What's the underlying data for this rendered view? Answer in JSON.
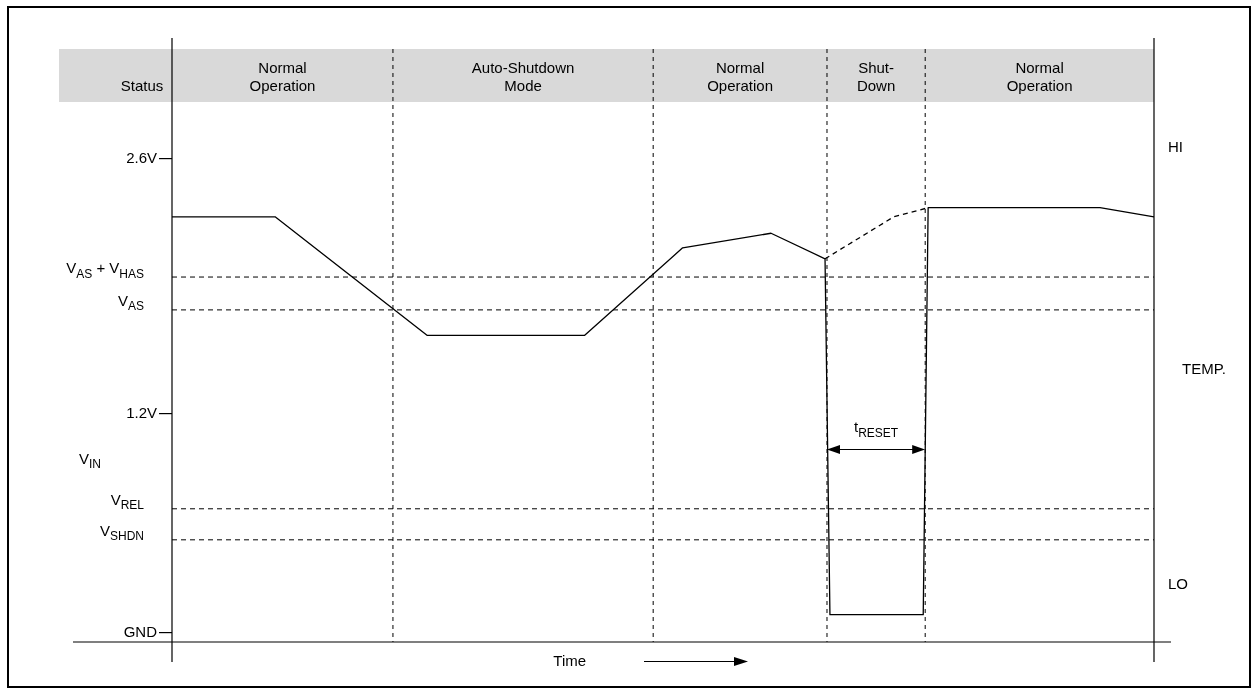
{
  "chart_data": {
    "type": "line",
    "xlabel": "Time",
    "ylabel": "V$_{IN}$",
    "y2label": "TEMP.",
    "categories": [
      null,
      null,
      null,
      null,
      null,
      null,
      null,
      null,
      null,
      null,
      null,
      null,
      null,
      null,
      null,
      null,
      null,
      null,
      null,
      null,
      null,
      null,
      null,
      null,
      null,
      null,
      null,
      null,
      null,
      null,
      null,
      null,
      null,
      null,
      null,
      null,
      null,
      null,
      null,
      null,
      null,
      null,
      null,
      null,
      null,
      null,
      null,
      null,
      null,
      null,
      null,
      null,
      null,
      null,
      null,
      null,
      null,
      null,
      null,
      null,
      null,
      null,
      null,
      null,
      null,
      null,
      null,
      null,
      null,
      null,
      null,
      null,
      null,
      null,
      null,
      null,
      null,
      null,
      null,
      null,
      null,
      null,
      null,
      null,
      null,
      null,
      null,
      null,
      null,
      null,
      null,
      null,
      null,
      null,
      null,
      null,
      null,
      null,
      null,
      null,
      null,
      null,
      null,
      null,
      null,
      null,
      null,
      null,
      null,
      null,
      null,
      null,
      null,
      null,
      null,
      null,
      null,
      null,
      null,
      null,
      null,
      null,
      null,
      null,
      null,
      null,
      null,
      null,
      null,
      null,
      null,
      null,
      null,
      null,
      null,
      null,
      null,
      null,
      null,
      null,
      null,
      null,
      null,
      null,
      null,
      null,
      null,
      null,
      null,
      null,
      null,
      null,
      null,
      null,
      null,
      null,
      null,
      null,
      null,
      null,
      null,
      null,
      null,
      null,
      null,
      null,
      null,
      null,
      null,
      null,
      null,
      null,
      null,
      null,
      null,
      null,
      null,
      null,
      null,
      null,
      null,
      null,
      null,
      null,
      null,
      null,
      null,
      null,
      null,
      null,
      null,
      null,
      null,
      null,
      null,
      null,
      null,
      null,
      null,
      null,
      null
    ],
    "ylim": [
      -0.05,
      3.26
    ],
    "yticks": [
      {
        "value": 2.6,
        "label": "2.6V"
      },
      {
        "value": 1.2,
        "label": "1.2V"
      },
      {
        "value": 0,
        "label": "GND"
      }
    ],
    "tick_labels": "y",
    "grid": false,
    "legend": false,
    "series": [
      {
        "color": "#000000",
        "line_style": "solid",
        "values": [
          2.28,
          null,
          null,
          null,
          null,
          null,
          null,
          null,
          null,
          null,
          null,
          null,
          null,
          null,
          null,
          null,
          null,
          null,
          null,
          null,
          null,
          2.28,
          null,
          null,
          null,
          null,
          null,
          null,
          null,
          null,
          null,
          null,
          null,
          null,
          null,
          null,
          null,
          null,
          null,
          null,
          null,
          null,
          null,
          null,
          null,
          null,
          null,
          null,
          null,
          null,
          null,
          null,
          1.63,
          null,
          null,
          null,
          null,
          null,
          null,
          null,
          null,
          null,
          null,
          null,
          null,
          null,
          null,
          null,
          null,
          null,
          null,
          null,
          null,
          null,
          null,
          null,
          null,
          null,
          null,
          null,
          null,
          null,
          null,
          null,
          1.63,
          null,
          null,
          null,
          null,
          null,
          null,
          null,
          null,
          null,
          null,
          null,
          null,
          null,
          null,
          null,
          null,
          null,
          null,
          null,
          2.11,
          null,
          null,
          null,
          null,
          null,
          null,
          null,
          null,
          null,
          null,
          null,
          null,
          null,
          null,
          null,
          null,
          null,
          2.19,
          null,
          null,
          null,
          null,
          null,
          null,
          null,
          null,
          null,
          null,
          2.05,
          0.1,
          null,
          null,
          null,
          null,
          null,
          null,
          null,
          null,
          null,
          null,
          null,
          null,
          null,
          null,
          null,
          null,
          null,
          null,
          0.1,
          2.33,
          null,
          null,
          null,
          null,
          null,
          null,
          null,
          null,
          null,
          null,
          null,
          null,
          null,
          null,
          null,
          null,
          null,
          null,
          null,
          null,
          null,
          null,
          null,
          null,
          null,
          null,
          null,
          null,
          null,
          null,
          null,
          null,
          null,
          null,
          2.33,
          null,
          null,
          null,
          null,
          null,
          null,
          null,
          null,
          null,
          null,
          2.28
        ]
      },
      {
        "color": "#000000",
        "line_style": "dashed",
        "values": [
          null,
          null,
          null,
          null,
          null,
          null,
          null,
          null,
          null,
          null,
          null,
          null,
          null,
          null,
          null,
          null,
          null,
          null,
          null,
          null,
          null,
          null,
          null,
          null,
          null,
          null,
          null,
          null,
          null,
          null,
          null,
          null,
          null,
          null,
          null,
          null,
          null,
          null,
          null,
          null,
          null,
          null,
          null,
          null,
          null,
          null,
          null,
          null,
          null,
          null,
          null,
          null,
          null,
          null,
          null,
          null,
          null,
          null,
          null,
          null,
          null,
          null,
          null,
          null,
          null,
          null,
          null,
          null,
          null,
          null,
          null,
          null,
          null,
          null,
          null,
          null,
          null,
          null,
          null,
          null,
          null,
          null,
          null,
          null,
          null,
          null,
          null,
          null,
          null,
          null,
          null,
          null,
          null,
          null,
          null,
          null,
          null,
          null,
          null,
          null,
          null,
          null,
          null,
          null,
          null,
          null,
          null,
          null,
          null,
          null,
          null,
          null,
          null,
          null,
          null,
          null,
          null,
          null,
          null,
          null,
          null,
          null,
          null,
          null,
          null,
          null,
          null,
          null,
          null,
          null,
          null,
          null,
          null,
          2.05,
          null,
          null,
          null,
          null,
          null,
          null,
          null,
          null,
          null,
          null,
          null,
          null,
          null,
          2.28,
          null,
          null,
          null,
          null,
          null,
          null,
          2.33,
          null,
          null,
          null,
          null,
          null,
          null,
          null,
          null,
          null,
          null,
          null,
          null,
          null,
          null,
          null,
          null,
          null,
          null,
          null,
          null,
          null,
          null,
          null,
          null,
          null,
          null,
          null,
          null,
          null,
          null,
          null,
          null,
          null,
          null,
          null,
          null,
          null,
          null,
          null,
          null,
          null,
          null,
          null,
          null,
          null,
          null
        ]
      }
    ],
    "ref_lines": [
      {
        "axis": "y",
        "value": 1.95,
        "label": "V$_{AS}$ + V$_{HAS}$",
        "color": "#000000",
        "line_style": "dashed"
      },
      {
        "axis": "y",
        "value": 1.77,
        "label": "V$_{AS}$",
        "color": "#000000",
        "line_style": "dashed"
      },
      {
        "axis": "y",
        "value": 0.68,
        "label": "V$_{REL}$",
        "color": "#000000",
        "line_style": "dashed"
      },
      {
        "axis": "y",
        "value": 0.51,
        "label": "V$_{SHDN}$",
        "color": "#000000",
        "line_style": "dashed"
      }
    ],
    "annotations": [
      "Status",
      "Normal\nOperation",
      "Auto-Shutdown\nMode",
      "Normal\nOperation",
      "Shut-\nDown",
      "Normal\nOperation",
      "HI",
      "LO",
      "t$_{RESET}$"
    ]
  }
}
